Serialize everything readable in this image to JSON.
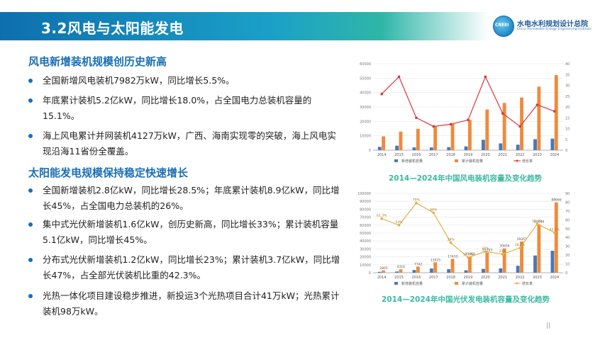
{
  "header": {
    "title": "3.2风电与太阳能发电"
  },
  "logo": {
    "circle_text": "CREEI",
    "name_cn": "水电水利规划设计总院",
    "name_en": "China Renewable Energy Engineering Institute"
  },
  "wind": {
    "heading": "风电新增装机规模创历史新高",
    "bullets": [
      "全国新增风电装机7982万kW，同比增长5.5%。",
      "年底累计装机5.2亿kW，同比增长18.0%，占全国电力总装机容量的15.1%。",
      "海上风电累计并网装机4127万kW，广西、海南实现零的突破，海上风电实现沿海11省份全覆盖。"
    ]
  },
  "solar": {
    "heading": "太阳能发电规模保持稳定快速增长",
    "bullets": [
      "全国新增装机2.8亿kW，同比增长28.5%；年底累计装机8.9亿kW，同比增长45%，占全国电力总装机的26%。",
      "集中式光伏新增装机1.6亿kW，创历史新高，同比增长33%；累计装机容量5.1亿kW，同比增长45%。",
      "分布式光伏新增装机1.2亿kW，同比增长23%；累计装机3.7亿kW，同比增长47%，占全部光伏装机比重的42.3%。",
      "光热一体化项目建设稳步推进，新投运3个光热项目合计41万kW；光热累计装机98万kW。"
    ]
  },
  "page_mark": "||",
  "chart_data": [
    {
      "type": "bar",
      "caption": "2014—2024年中国风电装机容量及变化趋势",
      "categories": [
        "2014",
        "2015",
        "2016",
        "2017",
        "2018",
        "2019",
        "2020",
        "2021",
        "2022",
        "2023",
        "2024"
      ],
      "series": [
        {
          "name": "新增装机容量",
          "kind": "bar",
          "color": "#4a78b5",
          "values": [
            2300,
            3100,
            1900,
            1900,
            2100,
            2600,
            7200,
            4700,
            3800,
            7600,
            8000
          ]
        },
        {
          "name": "累计装机容量",
          "kind": "bar",
          "color": "#ef8a3c",
          "values": [
            9600,
            12900,
            14800,
            16400,
            18400,
            21000,
            28200,
            32800,
            36500,
            44100,
            52100
          ]
        },
        {
          "name": "增长率",
          "kind": "line",
          "color": "#d8363a",
          "axis": "right",
          "values": [
            26,
            34,
            15,
            11,
            12,
            14,
            34,
            17,
            11,
            21,
            18
          ]
        }
      ],
      "ylim": [
        0,
        60000
      ],
      "y2lim": [
        0,
        40
      ],
      "yticks": [
        "0",
        "10000",
        "20000",
        "30000",
        "40000",
        "50000",
        "60000"
      ],
      "y2ticks": [
        "0",
        "5",
        "10",
        "15",
        "20",
        "25",
        "30",
        "35",
        "40"
      ],
      "legend": "bottom"
    },
    {
      "type": "bar",
      "caption": "2014—2024年中国光伏发电装机容量及变化趋势",
      "categories": [
        "2014",
        "2015",
        "2016",
        "2017",
        "2018",
        "2019",
        "2020",
        "2021",
        "2022",
        "2023",
        "2024"
      ],
      "series": [
        {
          "name": "新增装机容量",
          "kind": "bar",
          "color": "#4a78b5",
          "values": [
            1060,
            1513,
            3424,
            5306,
            4426,
            3011,
            4820,
            5488,
            8741,
            21688,
            27700
          ]
        },
        {
          "name": "累计装机容量",
          "kind": "bar",
          "color": "#ef8a3c",
          "values": [
            2805,
            4318,
            7742,
            13025,
            17433,
            20468,
            25343,
            30656,
            39261,
            60949,
            88666
          ]
        },
        {
          "name": "增长率",
          "kind": "line",
          "color": "#e2b04a",
          "axis": "right",
          "values": [
            61.3,
            54,
            79,
            68,
            34,
            17.3,
            24,
            21,
            28.1,
            55.2,
            45.5
          ]
        }
      ],
      "bar_labels": [
        "2805",
        "4318",
        "7742",
        "13025",
        "17433",
        "20468",
        "25343",
        "30656",
        "39261",
        "60949",
        "88666"
      ],
      "rate_labels": [
        "61.3%",
        "54%",
        "79%",
        "68%",
        "34%",
        "17.3%",
        "24%",
        "21%",
        "28.1%",
        "55.2%",
        "45.5%"
      ],
      "ylim": [
        0,
        100000
      ],
      "y2lim": [
        0,
        90
      ],
      "yticks": [
        "0",
        "10000",
        "20000",
        "30000",
        "40000",
        "50000",
        "60000",
        "70000",
        "80000",
        "90000",
        "100000"
      ],
      "y2ticks": [
        "0",
        "10",
        "20",
        "30",
        "40",
        "50",
        "60",
        "70",
        "80",
        "90"
      ],
      "legend": "bottom"
    }
  ]
}
